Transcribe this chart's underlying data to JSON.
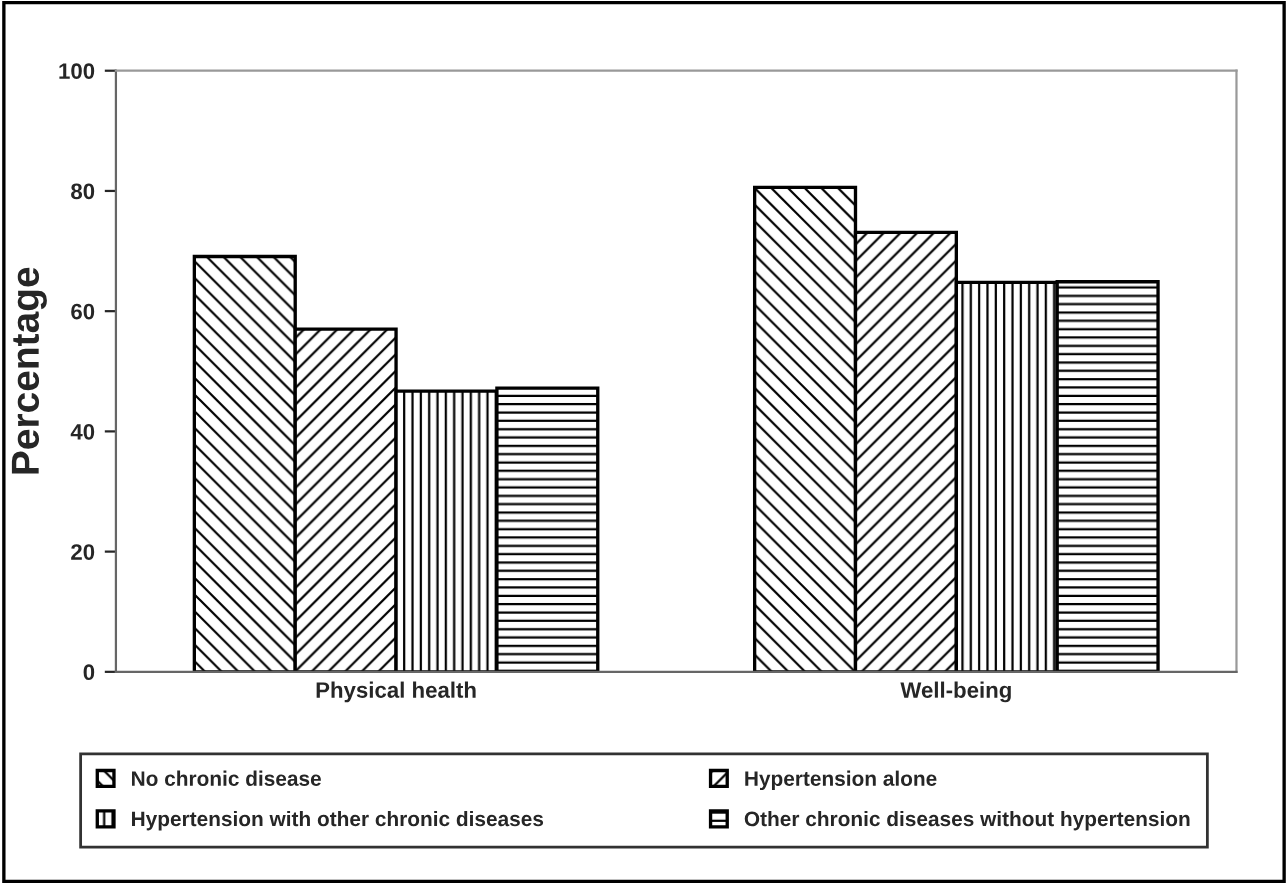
{
  "chart_data": {
    "type": "bar",
    "ylabel": "Percentage",
    "categories": [
      "Physical health",
      "Well-being"
    ],
    "series": [
      {
        "name": "No chronic disease",
        "color": "#000000",
        "values": [
          69.1,
          80.6
        ]
      },
      {
        "name": "Hypertension alone",
        "color": "#000000",
        "values": [
          57.0,
          73.1
        ]
      },
      {
        "name": "Hypertension with other chronic diseases",
        "color": "#000000",
        "values": [
          46.7,
          64.8
        ]
      },
      {
        "name": "Other chronic diseases without hypertension",
        "color": "#000000",
        "values": [
          47.2,
          64.9
        ]
      }
    ],
    "ylim": [
      0,
      100
    ],
    "yticks": [
      0,
      20,
      40,
      60,
      80,
      100
    ],
    "grid": false,
    "legend": "bottom"
  }
}
